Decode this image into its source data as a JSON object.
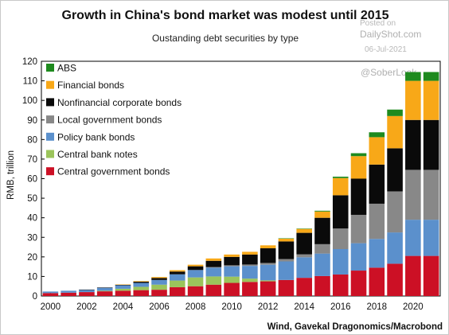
{
  "chart_data": {
    "type": "bar",
    "stacked": true,
    "title": "Growth in China's bond market was modest until 2015",
    "subtitle": "Oustanding debt securities by type",
    "ylabel": "RMB, trillion",
    "xlabel": "",
    "source": "Wind, Gavekal Dragonomics/Macrobond",
    "ylim": [
      0,
      120
    ],
    "yticks": [
      0,
      10,
      20,
      30,
      40,
      50,
      60,
      70,
      80,
      90,
      100,
      110,
      120
    ],
    "xticks": [
      "2000",
      "2002",
      "2004",
      "2006",
      "2008",
      "2010",
      "2012",
      "2014",
      "2016",
      "2018",
      "2020"
    ],
    "grid": false,
    "legend_position": "top-left",
    "categories": [
      "2000",
      "2001",
      "2002",
      "2003",
      "2004",
      "2005",
      "2006",
      "2007",
      "2008",
      "2009",
      "2010",
      "2011",
      "2012",
      "2013",
      "2014",
      "2015",
      "2016",
      "2017",
      "2018",
      "2019",
      "2020",
      "2021"
    ],
    "series": [
      {
        "name": "Central government bonds",
        "color": "#cc1025",
        "values": [
          1.5,
          1.7,
          2.0,
          2.4,
          2.7,
          3.0,
          3.2,
          4.5,
          5.0,
          5.8,
          6.7,
          7.2,
          7.5,
          8.2,
          9.3,
          10.2,
          11.0,
          13.0,
          14.5,
          16.5,
          20.5,
          20.5
        ]
      },
      {
        "name": "Central bank notes",
        "color": "#9bc45b",
        "values": [
          0.0,
          0.0,
          0.0,
          0.3,
          1.0,
          1.7,
          2.6,
          3.4,
          4.5,
          4.2,
          3.2,
          1.7,
          0.5,
          0.0,
          0.0,
          0.0,
          0.0,
          0.0,
          0.0,
          0.0,
          0.0,
          0.0
        ]
      },
      {
        "name": "Policy bank bonds",
        "color": "#5b90cc",
        "values": [
          0.8,
          1.0,
          1.2,
          1.5,
          1.8,
          2.0,
          2.4,
          3.2,
          3.8,
          4.5,
          5.3,
          6.5,
          8.0,
          9.5,
          10.5,
          11.5,
          13.0,
          14.0,
          14.7,
          16.0,
          18.5,
          18.5
        ]
      },
      {
        "name": "Local government bonds",
        "color": "#888888",
        "values": [
          0.0,
          0.0,
          0.0,
          0.0,
          0.0,
          0.0,
          0.0,
          0.0,
          0.0,
          0.3,
          0.5,
          0.7,
          0.9,
          1.2,
          1.5,
          4.8,
          10.5,
          14.5,
          18.0,
          21.0,
          25.5,
          25.5
        ]
      },
      {
        "name": "Nonfinancial corporate bonds",
        "color": "#0a0a0a",
        "values": [
          0.0,
          0.0,
          0.1,
          0.2,
          0.3,
          0.6,
          1.0,
          1.4,
          1.9,
          3.2,
          4.3,
          5.1,
          7.5,
          9.0,
          11.0,
          13.5,
          17.0,
          18.5,
          20.0,
          22.0,
          25.5,
          25.5
        ]
      },
      {
        "name": "Financial bonds",
        "color": "#f8a818",
        "values": [
          0.0,
          0.0,
          0.0,
          0.0,
          0.1,
          0.3,
          0.5,
          0.7,
          0.8,
          1.2,
          1.2,
          1.4,
          1.5,
          1.5,
          2.0,
          3.2,
          8.8,
          11.5,
          14.0,
          16.5,
          20.0,
          20.0
        ]
      },
      {
        "name": "ABS",
        "color": "#1e8a1e",
        "values": [
          0.0,
          0.0,
          0.0,
          0.0,
          0.0,
          0.0,
          0.0,
          0.0,
          0.0,
          0.0,
          0.0,
          0.0,
          0.0,
          0.1,
          0.2,
          0.4,
          0.7,
          1.5,
          2.5,
          3.3,
          4.5,
          4.5
        ]
      }
    ]
  },
  "watermark": {
    "posted_on": "Posted on",
    "site": "DailyShot.com",
    "date": "06-Jul-2021",
    "handle": "@SoberLook"
  }
}
